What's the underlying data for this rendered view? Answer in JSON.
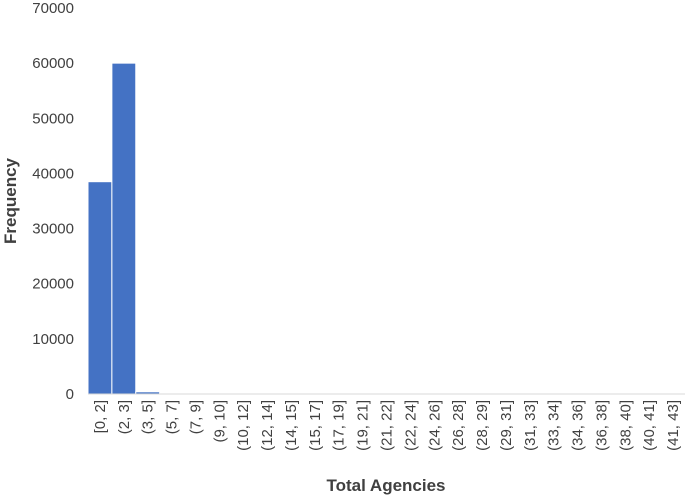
{
  "chart_data": {
    "type": "bar",
    "x_label": "Total Agencies",
    "y_label": "Frequency",
    "categories": [
      "[0, 2]",
      "(2, 3]",
      "(3, 5]",
      "(5, 7]",
      "(7, 9]",
      "(9, 10]",
      "(10, 12]",
      "(12, 14]",
      "(14, 15]",
      "(15, 17]",
      "(17, 19]",
      "(19, 21]",
      "(21, 22]",
      "(22, 24]",
      "(24, 26]",
      "(26, 28]",
      "(28, 29]",
      "(29, 31]",
      "(31, 33]",
      "(33, 34]",
      "(34, 36]",
      "(36, 38]",
      "(38, 40]",
      "(40, 41]",
      "(41, 43]"
    ],
    "values": [
      38500,
      60000,
      400,
      60,
      20,
      10,
      5,
      5,
      3,
      2,
      2,
      1,
      1,
      1,
      1,
      1,
      1,
      1,
      1,
      1,
      1,
      1,
      1,
      1,
      1
    ],
    "color": "#4472c4",
    "ylim": [
      0,
      70000
    ],
    "yticks": [
      0,
      10000,
      20000,
      30000,
      40000,
      50000,
      60000,
      70000
    ]
  }
}
